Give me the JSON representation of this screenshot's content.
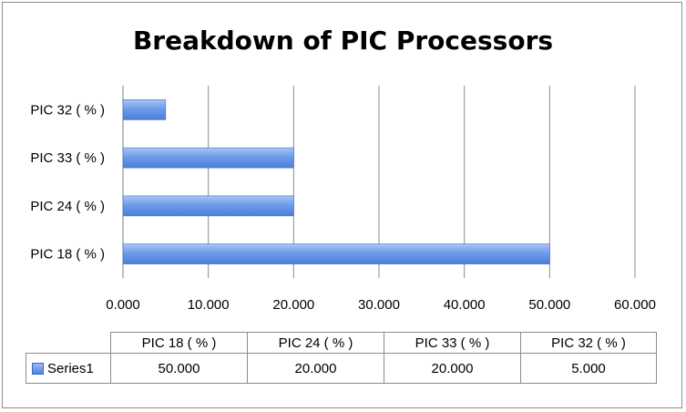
{
  "chart_data": {
    "type": "bar",
    "orientation": "horizontal",
    "title": "Breakdown of PIC Processors",
    "categories": [
      "PIC 18 ( % )",
      "PIC 24 ( % )",
      "PIC 33 ( % )",
      "PIC 32 ( % )"
    ],
    "series": [
      {
        "name": "Series1",
        "values": [
          50.0,
          20.0,
          20.0,
          5.0
        ]
      }
    ],
    "value_labels": [
      "50.000",
      "20.000",
      "20.000",
      "5.000"
    ],
    "x_ticks": [
      "0.000",
      "10.000",
      "20.000",
      "30.000",
      "40.000",
      "50.000",
      "60.000"
    ],
    "xlim": [
      0,
      60
    ],
    "grid": true,
    "legend": "data-table",
    "bar_color": "#5b8ee6"
  }
}
